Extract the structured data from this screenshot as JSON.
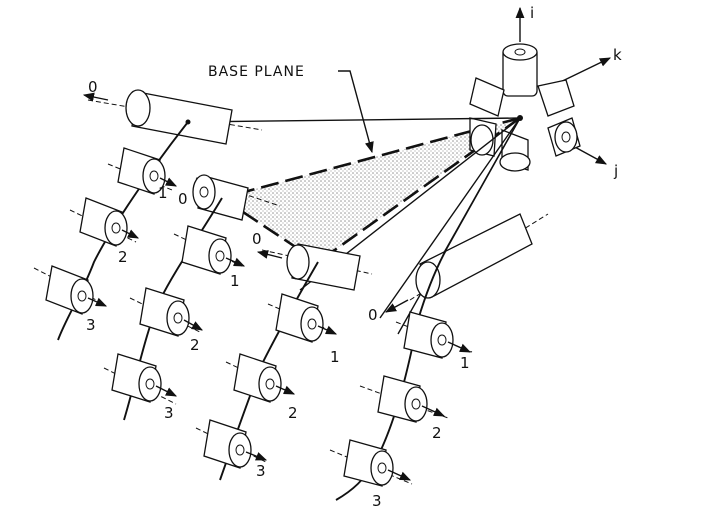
{
  "labels": {
    "base_plane": "BASE PLANE",
    "axis_i": "i",
    "axis_j": "j",
    "axis_k": "k",
    "zero": "0",
    "one": "1",
    "two": "2",
    "three": "3"
  },
  "colors": {
    "ink": "#111111",
    "paper": "#ffffff",
    "stipple": "#8c8c8c"
  }
}
